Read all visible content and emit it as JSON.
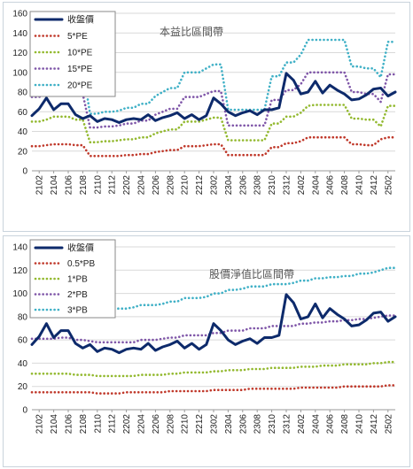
{
  "colors": {
    "price": "#0d2a6b",
    "band1": "#c0392b",
    "band2": "#93b92f",
    "band3": "#7f56a8",
    "band4": "#3fb0c6",
    "grid": "#d9d9d9"
  },
  "x_ticks": [
    "2102",
    "2104",
    "2106",
    "2108",
    "2110",
    "2112",
    "2202",
    "2204",
    "2206",
    "2208",
    "2210",
    "2212",
    "2302",
    "2304",
    "2306",
    "2308",
    "2310",
    "2312",
    "2402",
    "2404",
    "2406",
    "2408",
    "2410",
    "2412",
    "2502"
  ],
  "chart_data": [
    {
      "type": "line",
      "title": "本益比區間帶",
      "ylim": [
        0,
        160
      ],
      "yticks": [
        0,
        20,
        40,
        60,
        80,
        100,
        120,
        140,
        160
      ],
      "grid": true,
      "legend_position": "top-left",
      "x": [
        "2101",
        "2102",
        "2103",
        "2104",
        "2105",
        "2106",
        "2107",
        "2108",
        "2109",
        "2110",
        "2111",
        "2112",
        "2201",
        "2202",
        "2203",
        "2204",
        "2205",
        "2206",
        "2207",
        "2208",
        "2209",
        "2210",
        "2211",
        "2212",
        "2301",
        "2302",
        "2303",
        "2304",
        "2305",
        "2306",
        "2307",
        "2308",
        "2309",
        "2310",
        "2311",
        "2312",
        "2401",
        "2402",
        "2403",
        "2404",
        "2405",
        "2406",
        "2407",
        "2408",
        "2409",
        "2410",
        "2411",
        "2412",
        "2501",
        "2502",
        "2503"
      ],
      "series": [
        {
          "name": "收盤價",
          "style": "solid",
          "values": [
            56,
            63,
            74,
            62,
            68,
            68,
            57,
            53,
            56,
            50,
            53,
            52,
            49,
            52,
            53,
            52,
            57,
            51,
            54,
            56,
            59,
            53,
            57,
            52,
            56,
            74,
            68,
            60,
            56,
            59,
            61,
            57,
            62,
            62,
            64,
            99,
            92,
            78,
            80,
            91,
            79,
            87,
            82,
            78,
            72,
            73,
            77,
            83,
            84,
            76,
            80
          ]
        },
        {
          "name": "5*PE",
          "style": "dotted",
          "values": [
            25,
            25,
            26,
            27,
            27,
            27,
            26,
            26,
            15,
            15,
            15,
            15,
            15,
            16,
            16,
            17,
            17,
            19,
            20,
            21,
            21,
            25,
            25,
            25,
            26,
            27,
            27,
            16,
            16,
            16,
            16,
            16,
            16,
            24,
            24,
            28,
            28,
            30,
            34,
            34,
            34,
            34,
            34,
            34,
            27,
            27,
            26,
            26,
            32,
            34,
            34
          ]
        },
        {
          "name": "10*PE",
          "style": "dotted",
          "values": [
            50,
            50,
            52,
            55,
            55,
            55,
            52,
            52,
            29,
            29,
            30,
            30,
            31,
            32,
            32,
            34,
            34,
            38,
            40,
            42,
            42,
            50,
            50,
            50,
            52,
            54,
            54,
            31,
            31,
            31,
            31,
            31,
            31,
            48,
            48,
            55,
            55,
            59,
            66,
            67,
            67,
            67,
            67,
            67,
            53,
            53,
            52,
            52,
            45,
            66,
            66
          ]
        },
        {
          "name": "15*PE",
          "style": "dotted",
          "values": [
            75,
            75,
            78,
            82,
            82,
            82,
            78,
            78,
            44,
            44,
            45,
            45,
            46,
            48,
            48,
            51,
            51,
            57,
            60,
            63,
            63,
            75,
            75,
            75,
            78,
            81,
            81,
            46,
            46,
            46,
            46,
            46,
            46,
            72,
            72,
            82,
            82,
            88,
            100,
            100,
            100,
            100,
            100,
            100,
            80,
            80,
            78,
            78,
            70,
            98,
            98
          ]
        },
        {
          "name": "20*PE",
          "style": "dotted",
          "values": [
            100,
            100,
            104,
            110,
            110,
            110,
            104,
            104,
            58,
            58,
            60,
            60,
            61,
            64,
            64,
            68,
            68,
            76,
            80,
            84,
            84,
            100,
            100,
            100,
            104,
            108,
            108,
            62,
            62,
            62,
            62,
            62,
            62,
            96,
            96,
            110,
            110,
            118,
            133,
            133,
            133,
            133,
            133,
            133,
            106,
            106,
            104,
            104,
            95,
            131,
            131
          ]
        }
      ]
    },
    {
      "type": "line",
      "title": "股價淨值比區間帶",
      "ylim": [
        0,
        140
      ],
      "yticks": [
        0,
        20,
        40,
        60,
        80,
        100,
        120,
        140
      ],
      "grid": true,
      "legend_position": "top-left",
      "x": [
        "2101",
        "2102",
        "2103",
        "2104",
        "2105",
        "2106",
        "2107",
        "2108",
        "2109",
        "2110",
        "2111",
        "2112",
        "2201",
        "2202",
        "2203",
        "2204",
        "2205",
        "2206",
        "2207",
        "2208",
        "2209",
        "2210",
        "2211",
        "2212",
        "2301",
        "2302",
        "2303",
        "2304",
        "2305",
        "2306",
        "2307",
        "2308",
        "2309",
        "2310",
        "2311",
        "2312",
        "2401",
        "2402",
        "2403",
        "2404",
        "2405",
        "2406",
        "2407",
        "2408",
        "2409",
        "2410",
        "2411",
        "2412",
        "2501",
        "2502",
        "2503"
      ],
      "series": [
        {
          "name": "收盤價",
          "style": "solid",
          "values": [
            56,
            63,
            74,
            62,
            68,
            68,
            57,
            53,
            56,
            50,
            53,
            52,
            49,
            52,
            53,
            52,
            57,
            51,
            54,
            56,
            59,
            53,
            57,
            52,
            56,
            74,
            68,
            60,
            56,
            59,
            61,
            57,
            62,
            62,
            64,
            99,
            92,
            78,
            80,
            91,
            79,
            87,
            82,
            78,
            72,
            73,
            77,
            83,
            84,
            76,
            80
          ]
        },
        {
          "name": "0.5*PB",
          "style": "dotted",
          "values": [
            15,
            15,
            15,
            15,
            15,
            15,
            15,
            15,
            15,
            14,
            14,
            14,
            14,
            15,
            15,
            15,
            15,
            15,
            15,
            16,
            16,
            16,
            16,
            16,
            16,
            17,
            17,
            17,
            17,
            17,
            18,
            18,
            18,
            18,
            18,
            18,
            18,
            19,
            19,
            19,
            19,
            19,
            19,
            20,
            20,
            20,
            20,
            20,
            20,
            21,
            21
          ]
        },
        {
          "name": "1*PB",
          "style": "dotted",
          "values": [
            31,
            31,
            31,
            31,
            31,
            31,
            30,
            30,
            30,
            29,
            29,
            29,
            29,
            29,
            29,
            30,
            30,
            30,
            30,
            31,
            31,
            32,
            32,
            32,
            32,
            33,
            33,
            34,
            34,
            34,
            35,
            35,
            35,
            36,
            36,
            36,
            36,
            37,
            37,
            37,
            38,
            38,
            38,
            39,
            39,
            39,
            39,
            40,
            40,
            41,
            41
          ]
        },
        {
          "name": "2*PB",
          "style": "dotted",
          "values": [
            61,
            61,
            61,
            61,
            62,
            62,
            60,
            60,
            59,
            58,
            58,
            58,
            58,
            58,
            58,
            60,
            60,
            60,
            61,
            62,
            62,
            64,
            64,
            64,
            64,
            66,
            66,
            68,
            68,
            68,
            70,
            70,
            70,
            72,
            72,
            72,
            72,
            74,
            74,
            75,
            75,
            76,
            76,
            77,
            77,
            78,
            78,
            79,
            80,
            81,
            81
          ]
        },
        {
          "name": "3*PB",
          "style": "dotted",
          "values": [
            92,
            92,
            92,
            92,
            93,
            93,
            90,
            90,
            89,
            87,
            87,
            87,
            87,
            87,
            88,
            90,
            90,
            90,
            91,
            93,
            93,
            96,
            96,
            96,
            97,
            100,
            100,
            103,
            103,
            104,
            106,
            106,
            106,
            108,
            108,
            108,
            109,
            111,
            111,
            113,
            113,
            114,
            114,
            115,
            115,
            117,
            117,
            118,
            120,
            122,
            122
          ]
        }
      ]
    }
  ]
}
